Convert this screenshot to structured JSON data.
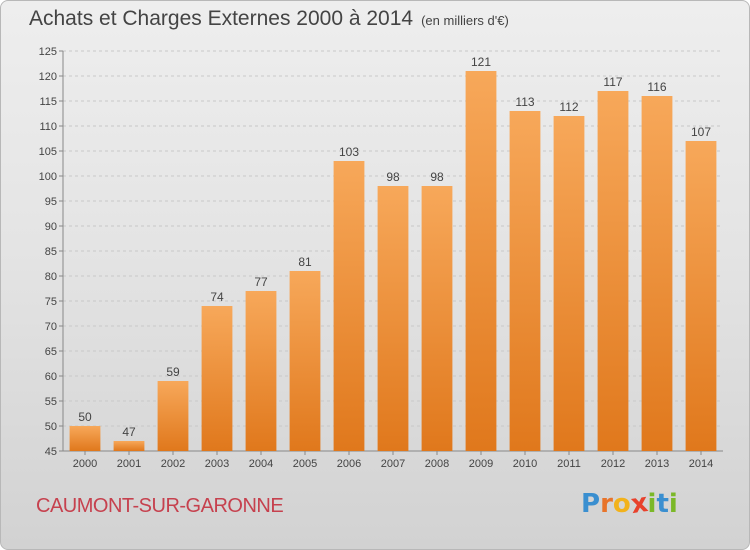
{
  "title": "Achats et Charges Externes 2000 à 2014",
  "subtitle": "(en milliers d'€)",
  "commune": "CAUMONT-SUR-GARONNE",
  "logo": {
    "letters": [
      "P",
      "r",
      "o",
      "x",
      "i",
      "t",
      "i"
    ],
    "colors": [
      "#3a8fd0",
      "#e8742a",
      "#f2b21b",
      "#e8412c",
      "#7bb828",
      "#3a8fd0",
      "#7bb828"
    ]
  },
  "colors": {
    "bar_top": "#f7a85a",
    "bar_bottom": "#e0781c",
    "grid": "#c8c8c8",
    "text": "#444444",
    "commune": "#c6414e"
  },
  "chart_data": {
    "type": "bar",
    "categories": [
      "2000",
      "2001",
      "2002",
      "2003",
      "2004",
      "2005",
      "2006",
      "2007",
      "2008",
      "2009",
      "2010",
      "2011",
      "2012",
      "2013",
      "2014"
    ],
    "values": [
      50,
      47,
      59,
      74,
      77,
      81,
      103,
      98,
      98,
      121,
      113,
      112,
      117,
      116,
      107
    ],
    "ylim": [
      45,
      125
    ],
    "yticks": [
      45,
      50,
      55,
      60,
      65,
      70,
      75,
      80,
      85,
      90,
      95,
      100,
      105,
      110,
      115,
      120,
      125
    ],
    "grid": true,
    "data_labels": true
  }
}
